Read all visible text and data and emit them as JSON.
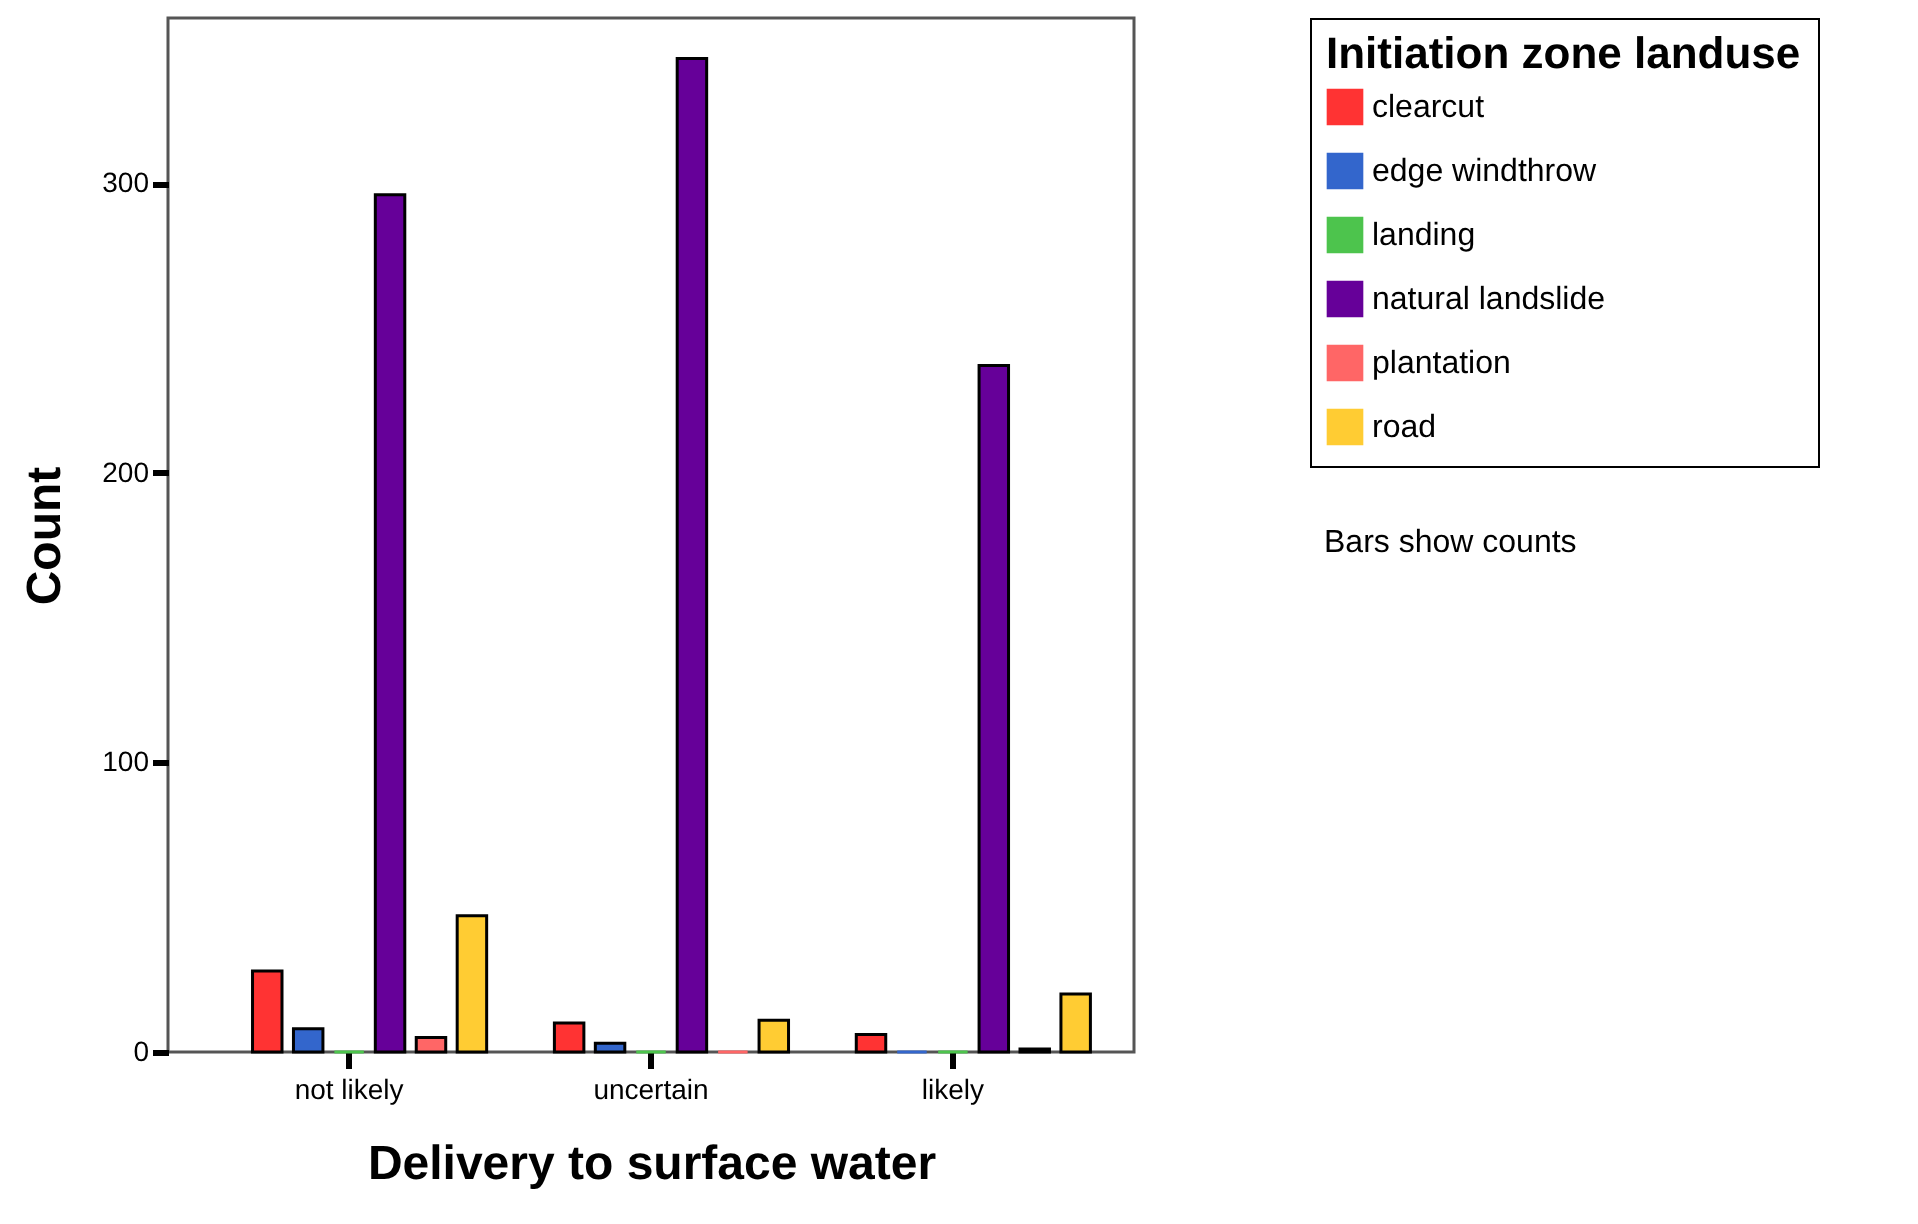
{
  "chart_data": {
    "type": "bar",
    "xlabel": "Delivery to surface water",
    "ylabel": "Count",
    "legend_title": "Initiation zone landuse",
    "categories": [
      "not likely",
      "uncertain",
      "likely"
    ],
    "series": [
      {
        "name": "clearcut",
        "color": "#ff3333",
        "values": [
          28,
          10,
          6
        ]
      },
      {
        "name": "edge windthrow",
        "color": "#3366cc",
        "values": [
          8,
          3,
          0
        ]
      },
      {
        "name": "landing",
        "color": "#4dc44d",
        "values": [
          0,
          0,
          0
        ]
      },
      {
        "name": "natural landslide",
        "color": "#660099",
        "values": [
          296,
          343,
          237
        ]
      },
      {
        "name": "plantation",
        "color": "#ff6666",
        "values": [
          5,
          0,
          1
        ]
      },
      {
        "name": "road",
        "color": "#ffcc33",
        "values": [
          47,
          11,
          20
        ]
      }
    ],
    "ylim": [
      0,
      357
    ],
    "yticks": [
      0,
      100,
      200,
      300
    ],
    "grid": false,
    "legend": "right",
    "annotations": [
      "Bars show counts"
    ]
  }
}
